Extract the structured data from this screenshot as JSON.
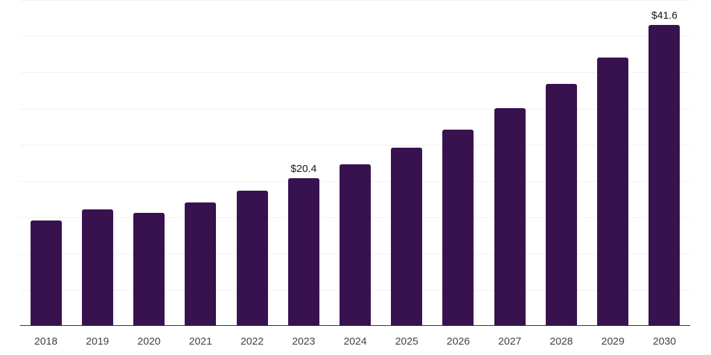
{
  "chart_data": {
    "type": "bar",
    "title": "",
    "xlabel": "",
    "ylabel": "",
    "categories": [
      "2018",
      "2019",
      "2020",
      "2021",
      "2022",
      "2023",
      "2024",
      "2025",
      "2026",
      "2027",
      "2028",
      "2029",
      "2030"
    ],
    "values": [
      14.6,
      16.1,
      15.6,
      17.0,
      18.7,
      20.4,
      22.3,
      24.6,
      27.1,
      30.1,
      33.4,
      37.1,
      41.6
    ],
    "data_labels": [
      "",
      "",
      "",
      "",
      "",
      "$20.4",
      "",
      "",
      "",
      "",
      "",
      "",
      "$41.6"
    ],
    "ylim": [
      0,
      45
    ],
    "grid_step": 5,
    "grid": true,
    "legend": false,
    "y_axis_labels_visible": false,
    "colors": {
      "bar": "#38124e",
      "gridline": "#f1f1f3",
      "axis_line": "#26262c",
      "tick_label": "#424242",
      "data_label": "#17171a",
      "background": "#ffffff"
    }
  }
}
